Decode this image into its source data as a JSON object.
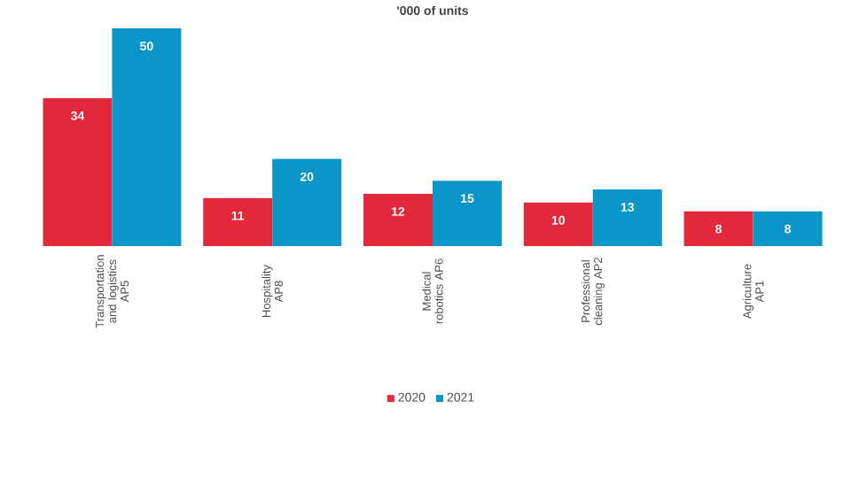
{
  "chart_data": {
    "type": "bar",
    "title": "'000 of units",
    "categories": [
      "Transportation and logistics AP5",
      "Hospitality AP8",
      "Medical robotics AP6",
      "Professional cleaning AP2",
      "Agriculture AP1"
    ],
    "series": [
      {
        "name": "2020",
        "color": "#e2283a",
        "values": [
          34,
          11,
          12,
          10,
          8
        ]
      },
      {
        "name": "2021",
        "color": "#0a96c8",
        "values": [
          50,
          20,
          15,
          13,
          8
        ]
      }
    ],
    "data_labels": true,
    "legend": "bottom"
  }
}
